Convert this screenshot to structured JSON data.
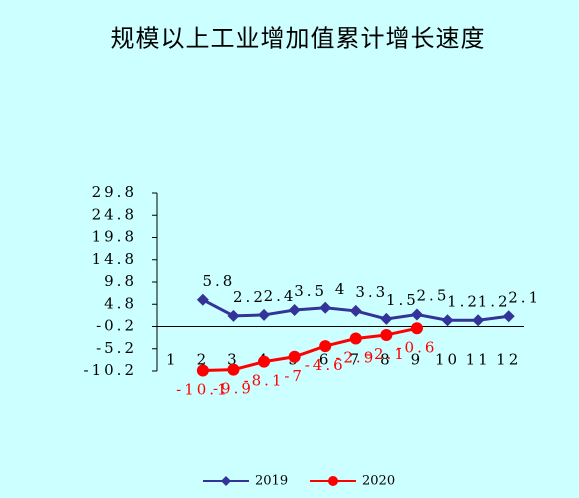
{
  "chart_data": {
    "type": "line",
    "title": "规模以上工业增加值累计增长速度",
    "categories": [
      "1",
      "2",
      "3",
      "4",
      "5",
      "6",
      "7",
      "8",
      "9",
      "10",
      "11",
      "12"
    ],
    "series": [
      {
        "name": "2019",
        "color": "#333399",
        "marker": "diamond",
        "values": [
          null,
          5.8,
          2.2,
          2.4,
          3.5,
          4,
          3.3,
          1.5,
          2.5,
          1.2,
          1.2,
          2.1
        ]
      },
      {
        "name": "2020",
        "color": "#ff0000",
        "marker": "circle",
        "values": [
          null,
          -10.1,
          -9.9,
          -8.1,
          -7,
          -4.6,
          -2.9,
          -2.1,
          -0.6,
          null,
          null,
          null
        ]
      }
    ],
    "ylim": [
      -10.2,
      29.8
    ],
    "yticks": [
      29.8,
      24.8,
      19.8,
      14.8,
      9.8,
      4.8,
      -0.2,
      -5.2,
      -10.2
    ],
    "grid": false,
    "legend": "bottom"
  }
}
